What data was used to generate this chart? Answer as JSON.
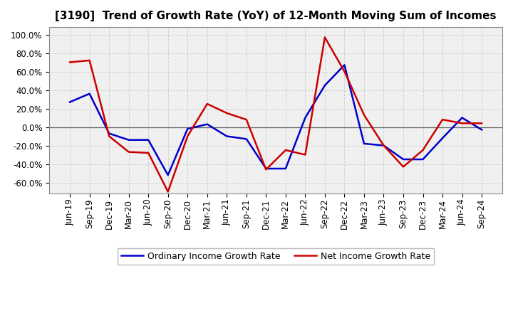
{
  "title": "[3190]  Trend of Growth Rate (YoY) of 12-Month Moving Sum of Incomes",
  "x_labels": [
    "Jun-19",
    "Sep-19",
    "Dec-19",
    "Mar-20",
    "Jun-20",
    "Sep-20",
    "Dec-20",
    "Mar-21",
    "Jun-21",
    "Sep-21",
    "Dec-21",
    "Mar-22",
    "Jun-22",
    "Sep-22",
    "Dec-22",
    "Mar-23",
    "Jun-23",
    "Sep-23",
    "Dec-23",
    "Mar-24",
    "Jun-24",
    "Sep-24"
  ],
  "ordinary_income": [
    0.27,
    0.36,
    -0.07,
    -0.14,
    -0.14,
    -0.52,
    -0.02,
    0.03,
    -0.1,
    -0.13,
    -0.45,
    -0.45,
    0.1,
    0.45,
    0.67,
    -0.18,
    -0.2,
    -0.35,
    -0.35,
    -0.12,
    0.1,
    -0.03
  ],
  "net_income": [
    0.7,
    0.72,
    -0.1,
    -0.27,
    -0.28,
    -0.7,
    -0.1,
    0.25,
    0.15,
    0.08,
    -0.46,
    -0.25,
    -0.3,
    0.97,
    0.6,
    0.13,
    -0.2,
    -0.43,
    -0.25,
    0.08,
    0.04,
    0.04
  ],
  "ordinary_color": "#0000cc",
  "net_color": "#cc0000",
  "ylim": [
    -0.72,
    1.08
  ],
  "yticks": [
    -0.6,
    -0.4,
    -0.2,
    0.0,
    0.2,
    0.4,
    0.6,
    0.8,
    1.0
  ],
  "plot_bg_color": "#f0f0f0",
  "fig_bg_color": "#ffffff",
  "grid_color": "#999999",
  "zero_line_color": "#606060",
  "legend_ordinary": "Ordinary Income Growth Rate",
  "legend_net": "Net Income Growth Rate",
  "title_fontsize": 11,
  "tick_fontsize": 8.5,
  "linewidth": 1.8
}
